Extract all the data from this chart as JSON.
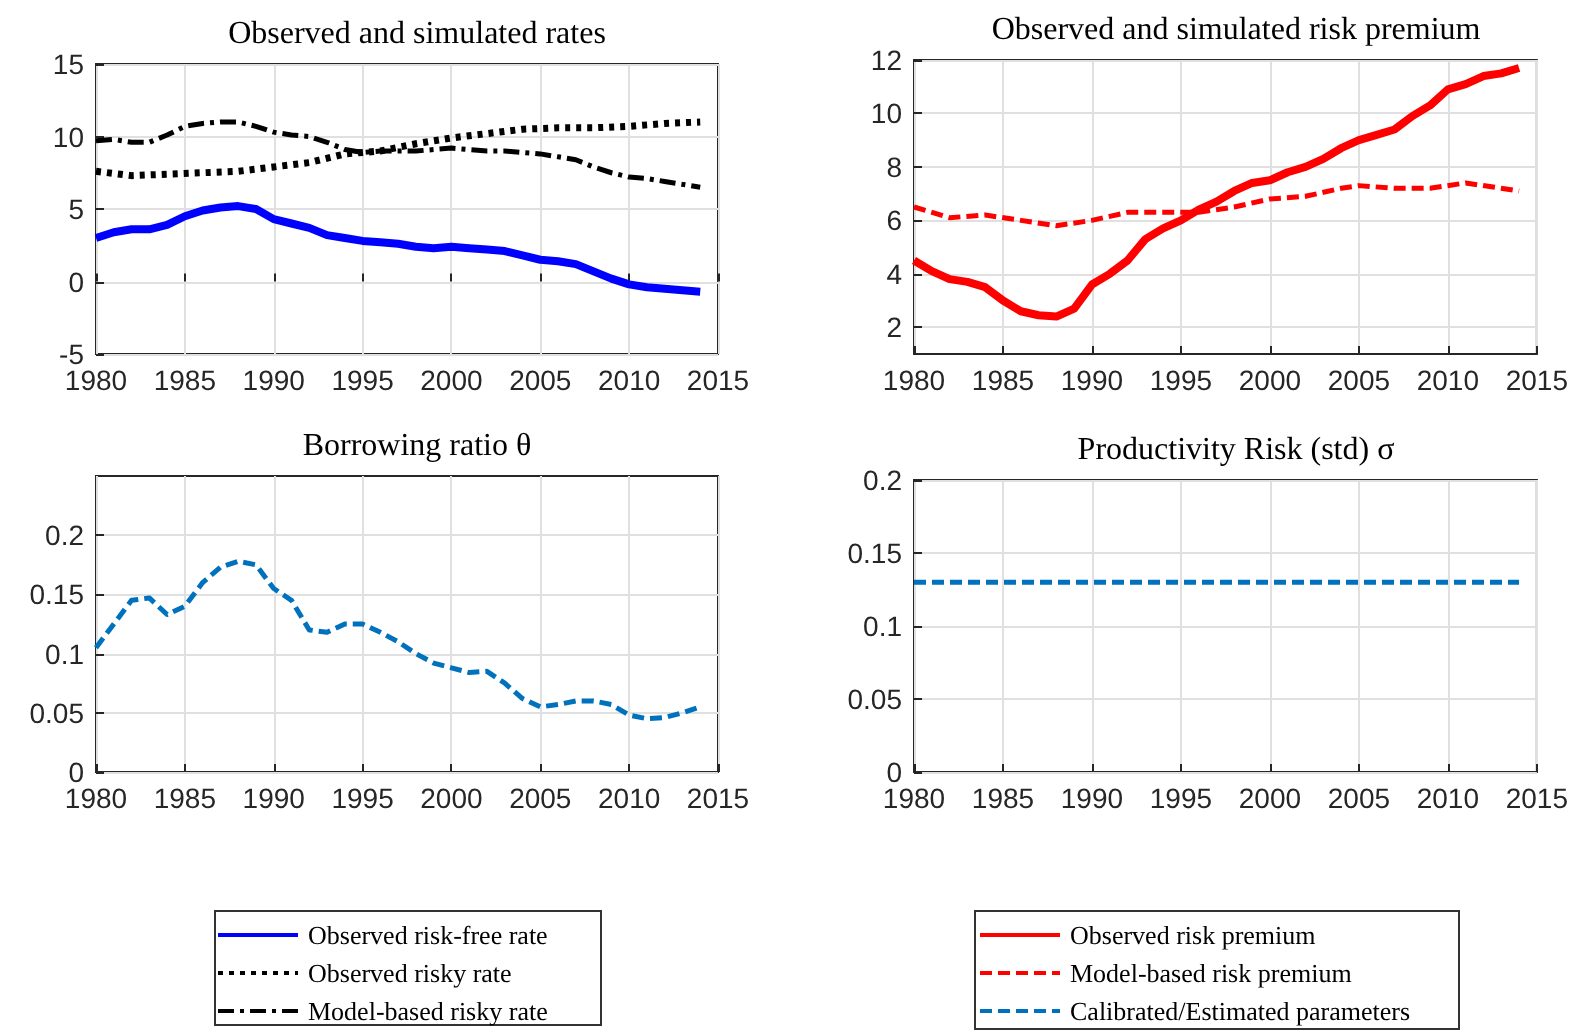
{
  "chart_data": [
    {
      "type": "line",
      "title": "Observed and simulated rates",
      "xlim": [
        1980,
        2015
      ],
      "xticks": [
        1980,
        1985,
        1990,
        1995,
        2000,
        2005,
        2010,
        2015
      ],
      "ylim": [
        -5,
        15
      ],
      "yticks": [
        -5,
        0,
        5,
        10,
        15
      ],
      "grid": true,
      "legend": "bottom",
      "marker": "none",
      "series": [
        {
          "name": "Observed risk-free rate",
          "color": "#0000ff",
          "line_style": "solid",
          "x": [
            1980,
            1981,
            1982,
            1983,
            1984,
            1985,
            1986,
            1987,
            1988,
            1989,
            1990,
            1991,
            1992,
            1993,
            1994,
            1995,
            1996,
            1997,
            1998,
            1999,
            2000,
            2001,
            2002,
            2003,
            2004,
            2005,
            2006,
            2007,
            2008,
            2009,
            2010,
            2011,
            2012,
            2013,
            2014
          ],
          "values": [
            3.0,
            3.4,
            3.6,
            3.6,
            3.9,
            4.5,
            4.9,
            5.1,
            5.2,
            5.0,
            4.3,
            4.0,
            3.7,
            3.2,
            3.0,
            2.8,
            2.7,
            2.6,
            2.4,
            2.3,
            2.4,
            2.3,
            2.2,
            2.1,
            1.8,
            1.5,
            1.4,
            1.2,
            0.7,
            0.2,
            -0.2,
            -0.4,
            -0.5,
            -0.6,
            -0.7
          ]
        },
        {
          "name": "Observed risky rate",
          "color": "#000000",
          "line_style": "dotted",
          "x": [
            1980,
            1982,
            1984,
            1986,
            1988,
            1990,
            1992,
            1994,
            1996,
            1998,
            2000,
            2002,
            2004,
            2006,
            2008,
            2010,
            2012,
            2014
          ],
          "values": [
            7.6,
            7.3,
            7.4,
            7.5,
            7.6,
            7.9,
            8.2,
            8.8,
            9.0,
            9.5,
            9.9,
            10.2,
            10.5,
            10.6,
            10.6,
            10.7,
            10.9,
            11.0
          ]
        },
        {
          "name": "Model-based risky rate",
          "color": "#000000",
          "line_style": "dashdot",
          "x": [
            1980,
            1981,
            1982,
            1983,
            1984,
            1985,
            1986,
            1987,
            1988,
            1989,
            1990,
            1991,
            1992,
            1993,
            1994,
            1995,
            1996,
            1997,
            1998,
            1999,
            2000,
            2001,
            2002,
            2003,
            2004,
            2005,
            2006,
            2007,
            2008,
            2009,
            2010,
            2011,
            2012,
            2013,
            2014
          ],
          "values": [
            9.7,
            9.8,
            9.6,
            9.6,
            10.1,
            10.7,
            10.9,
            11.0,
            11.0,
            10.7,
            10.3,
            10.1,
            10.0,
            9.6,
            9.1,
            8.9,
            9.0,
            9.0,
            9.0,
            9.1,
            9.2,
            9.1,
            9.0,
            9.0,
            8.9,
            8.8,
            8.6,
            8.4,
            7.9,
            7.5,
            7.2,
            7.1,
            6.9,
            6.7,
            6.5
          ]
        }
      ]
    },
    {
      "type": "line",
      "title": "Observed and simulated risk premium",
      "xlim": [
        1980,
        2015
      ],
      "xticks": [
        1980,
        1985,
        1990,
        1995,
        2000,
        2005,
        2010,
        2015
      ],
      "ylim": [
        1,
        12
      ],
      "yticks": [
        2,
        4,
        6,
        8,
        10,
        12
      ],
      "grid": true,
      "legend": "bottom",
      "marker": "none",
      "series": [
        {
          "name": "Observed risk premium",
          "color": "#ff0000",
          "line_style": "solid",
          "x": [
            1980,
            1981,
            1982,
            1983,
            1984,
            1985,
            1986,
            1987,
            1988,
            1989,
            1990,
            1991,
            1992,
            1993,
            1994,
            1995,
            1996,
            1997,
            1998,
            1999,
            2000,
            2001,
            2002,
            2003,
            2004,
            2005,
            2006,
            2007,
            2008,
            2009,
            2010,
            2011,
            2012,
            2013,
            2014
          ],
          "values": [
            4.5,
            4.1,
            3.8,
            3.7,
            3.5,
            3.0,
            2.6,
            2.45,
            2.4,
            2.7,
            3.6,
            4.0,
            4.5,
            5.3,
            5.7,
            6.0,
            6.4,
            6.7,
            7.1,
            7.4,
            7.5,
            7.8,
            8.0,
            8.3,
            8.7,
            9.0,
            9.2,
            9.4,
            9.9,
            10.3,
            10.9,
            11.1,
            11.4,
            11.5,
            11.7
          ]
        },
        {
          "name": "Model-based risk premium",
          "color": "#ff0000",
          "line_style": "dashed",
          "x": [
            1980,
            1982,
            1984,
            1986,
            1988,
            1990,
            1992,
            1994,
            1996,
            1998,
            2000,
            2002,
            2004,
            2005,
            2007,
            2009,
            2011,
            2014
          ],
          "values": [
            6.5,
            6.1,
            6.2,
            6.0,
            5.8,
            6.0,
            6.3,
            6.3,
            6.3,
            6.5,
            6.8,
            6.9,
            7.2,
            7.3,
            7.2,
            7.2,
            7.4,
            7.1
          ]
        }
      ]
    },
    {
      "type": "line",
      "title": "Borrowing ratio θ",
      "xlim": [
        1980,
        2015
      ],
      "xticks": [
        1980,
        1985,
        1990,
        1995,
        2000,
        2005,
        2010,
        2015
      ],
      "ylim": [
        0,
        0.25
      ],
      "yticks": [
        0,
        0.05,
        0.1,
        0.15,
        0.2
      ],
      "grid": true,
      "marker": "none",
      "series": [
        {
          "color": "#0072bd",
          "line_style": "dashed",
          "x": [
            1980,
            1981,
            1982,
            1983,
            1984,
            1985,
            1986,
            1987,
            1988,
            1989,
            1990,
            1991,
            1992,
            1993,
            1994,
            1995,
            1996,
            1997,
            1998,
            1999,
            2000,
            2001,
            2002,
            2003,
            2004,
            2005,
            2006,
            2007,
            2008,
            2009,
            2010,
            2011,
            2012,
            2013,
            2014
          ],
          "values": [
            0.105,
            0.125,
            0.145,
            0.147,
            0.133,
            0.14,
            0.16,
            0.173,
            0.178,
            0.175,
            0.155,
            0.145,
            0.12,
            0.118,
            0.125,
            0.125,
            0.118,
            0.11,
            0.1,
            0.092,
            0.088,
            0.084,
            0.085,
            0.075,
            0.062,
            0.055,
            0.057,
            0.06,
            0.06,
            0.057,
            0.048,
            0.045,
            0.046,
            0.05,
            0.055
          ]
        }
      ]
    },
    {
      "type": "line",
      "title": "Productivity Risk (std) σ",
      "xlim": [
        1980,
        2015
      ],
      "xticks": [
        1980,
        1985,
        1990,
        1995,
        2000,
        2005,
        2010,
        2015
      ],
      "ylim": [
        0,
        0.2
      ],
      "yticks": [
        0,
        0.05,
        0.1,
        0.15,
        0.2
      ],
      "grid": true,
      "legend": "bottom",
      "marker": "none",
      "series": [
        {
          "name": "Calibrated/Estimated parameters",
          "color": "#0072bd",
          "line_style": "dashed",
          "x": [
            1980,
            2014
          ],
          "values": [
            0.13,
            0.13
          ]
        }
      ]
    }
  ]
}
